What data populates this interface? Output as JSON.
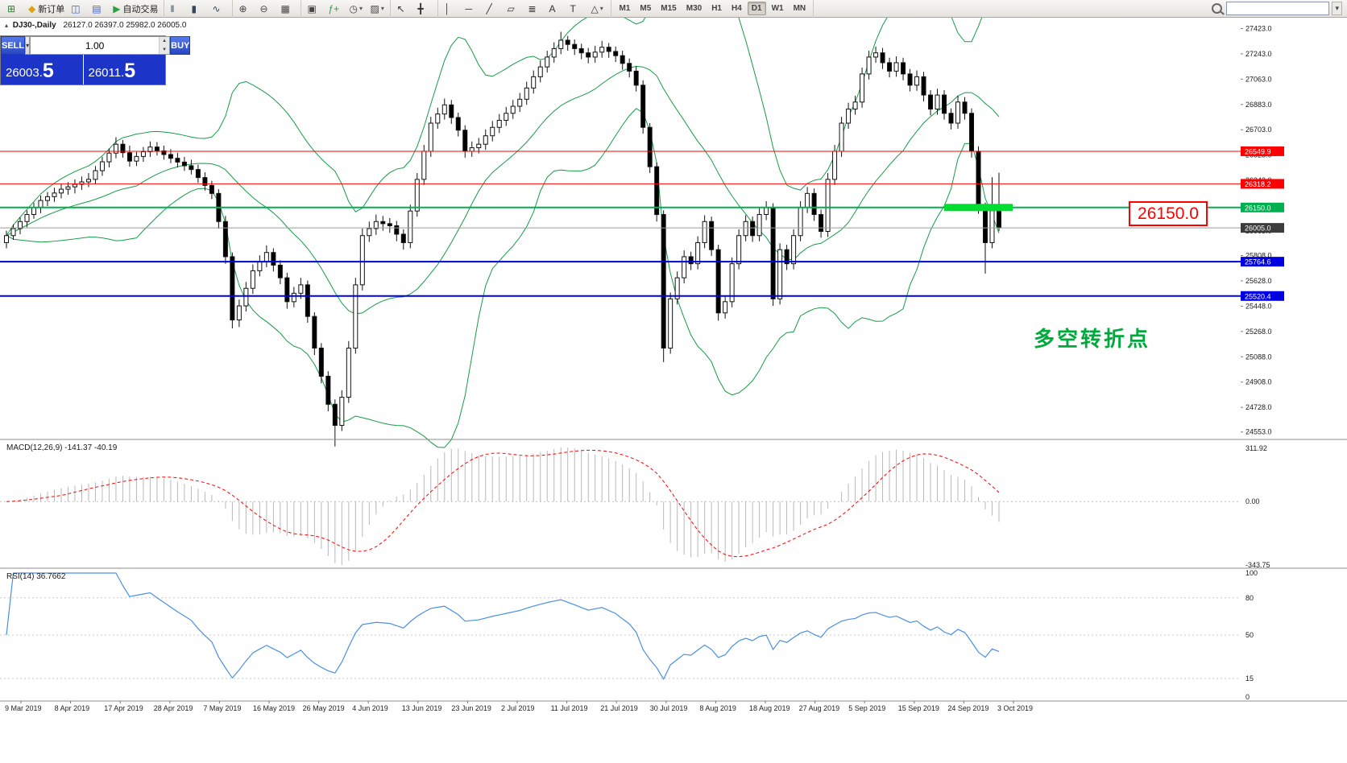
{
  "toolbar": {
    "groups": [
      {
        "name": "standard",
        "items": [
          {
            "name": "new-chart-icon",
            "glyph": "⊞",
            "color": "#2e7d32"
          },
          {
            "name": "new-order-button",
            "glyph": "◆",
            "color": "#d9a418",
            "label": "新订单"
          },
          {
            "name": "profiles-icon",
            "glyph": "◫",
            "color": "#3f62c8"
          },
          {
            "name": "market-watch-icon",
            "glyph": "▤",
            "color": "#3f62c8"
          },
          {
            "name": "autotrading-button",
            "glyph": "▶",
            "color": "#2f9e44",
            "label": "自动交易"
          }
        ]
      },
      {
        "name": "chart-types",
        "items": [
          {
            "name": "bar-chart-icon",
            "glyph": "‖",
            "color": "#33475a"
          },
          {
            "name": "candlestick-chart-icon",
            "glyph": "▮",
            "color": "#33475a"
          },
          {
            "name": "line-chart-icon",
            "glyph": "∿",
            "color": "#33475a"
          }
        ]
      },
      {
        "name": "zoom",
        "items": [
          {
            "name": "zoom-in-icon",
            "glyph": "⊕",
            "color": "#444444"
          },
          {
            "name": "zoom-out-icon",
            "glyph": "⊖",
            "color": "#444444"
          },
          {
            "name": "tile-windows-icon",
            "glyph": "▦",
            "color": "#444444"
          }
        ]
      },
      {
        "name": "indicators",
        "items": [
          {
            "name": "arrange-windows-icon",
            "glyph": "▣",
            "color": "#444444"
          },
          {
            "name": "indicators-icon",
            "glyph": "ƒ+",
            "color": "#2f9e44"
          },
          {
            "name": "periods-icon",
            "glyph": "◷",
            "color": "#444444",
            "dropdown": true
          },
          {
            "name": "templates-icon",
            "glyph": "▨",
            "color": "#444444",
            "dropdown": true
          }
        ]
      },
      {
        "name": "cursor",
        "items": [
          {
            "name": "cursor-icon",
            "glyph": "↖",
            "color": "#333333"
          },
          {
            "name": "crosshair-icon",
            "glyph": "╋",
            "color": "#333333"
          }
        ]
      },
      {
        "name": "objects",
        "items": [
          {
            "name": "vertical-line-icon",
            "glyph": "│",
            "color": "#333333"
          },
          {
            "name": "horizontal-line-icon",
            "glyph": "─",
            "color": "#333333"
          },
          {
            "name": "trendline-icon",
            "glyph": "╱",
            "color": "#333333"
          },
          {
            "name": "equidistant-channel-icon",
            "glyph": "▱",
            "color": "#333333"
          },
          {
            "name": "fibonacci-icon",
            "glyph": "≣",
            "color": "#333333"
          },
          {
            "name": "text-icon",
            "glyph": "A",
            "color": "#333333"
          },
          {
            "name": "label-icon",
            "glyph": "T",
            "color": "#333333"
          },
          {
            "name": "shapes-icon",
            "glyph": "△",
            "color": "#333333",
            "dropdown": true
          }
        ]
      }
    ],
    "timeframes": [
      "M1",
      "M5",
      "M15",
      "M30",
      "H1",
      "H4",
      "D1",
      "W1",
      "MN"
    ],
    "active_timeframe": "D1",
    "search_placeholder": ""
  },
  "trade_panel": {
    "sell_label": "SELL",
    "buy_label": "BUY",
    "volume": "1.00",
    "sell_price_main": "26003.",
    "sell_price_big": "5",
    "buy_price_main": "26011.",
    "buy_price_big": "5"
  },
  "colors": {
    "up_candle": "#ffffff",
    "down_candle": "#000000",
    "candle_border": "#111111",
    "bollinger": "#169c46",
    "macd_hist": "#b8b8b8",
    "macd_signal": "#ff0000",
    "rsi_line": "#4a90e2",
    "grid_sep": "#8c8c8c",
    "current_price_line": "#9a9a9a",
    "highlight_green": "#00dc32",
    "axis_text": "#1a1a1a"
  },
  "chart_data": {
    "type": "candlestick",
    "symbol_period": "DJ30-,Daily",
    "ohlc_text": "26127.0 26397.0 25982.0 26005.0",
    "ylim": [
      24500,
      27500
    ],
    "price_ticks": [
      "27423.0",
      "27243.0",
      "27063.0",
      "26883.0",
      "26703.0",
      "26523.0",
      "26343.0",
      "26163.0",
      "25983.0",
      "25808.0",
      "25628.0",
      "25448.0",
      "25268.0",
      "25088.0",
      "24908.0",
      "24728.0",
      "24553.0"
    ],
    "bollinger": {
      "period": 20,
      "deviation": 2
    },
    "h_lines": [
      {
        "price": 26549.9,
        "label": "26549.9",
        "color": "#ff0000",
        "width": 1
      },
      {
        "price": 26318.2,
        "label": "26318.2",
        "color": "#ff0000",
        "width": 1
      },
      {
        "price": 26150.0,
        "label": "26150.0",
        "color": "#00b050",
        "width": 2
      },
      {
        "price": 26005.0,
        "label": "26005.0",
        "color": "#9a9a9a",
        "width": 1,
        "current": true,
        "tag_bg": "#3c3c3c"
      },
      {
        "price": 25764.6,
        "label": "25764.6",
        "color": "#0000e0",
        "width": 2
      },
      {
        "price": 25520.4,
        "label": "25520.4",
        "color": "#0000e0",
        "width": 2
      }
    ],
    "highlight_segment": {
      "price": 26150.0,
      "from_index": 137,
      "to_index": 147
    },
    "annotations": {
      "price_box": "26150.0",
      "turning_point": "多空转折点"
    },
    "macd": {
      "label": "MACD(12,26,9)",
      "value_text": "-141.37 -40.19",
      "axis_top": "311.92",
      "axis_zero": "0.00",
      "axis_bottom": "-343.75",
      "fast": 12,
      "slow": 26,
      "signal_period": 9
    },
    "rsi": {
      "label": "RSI(14)",
      "value_text": "36.7662",
      "period": 14,
      "levels": [
        "100",
        "80",
        "50",
        "15",
        "0"
      ]
    },
    "dates": [
      "9 Mar 2019",
      "8 Apr 2019",
      "17 Apr 2019",
      "28 Apr 2019",
      "7 May 2019",
      "16 May 2019",
      "26 May 2019",
      "4 Jun 2019",
      "13 Jun 2019",
      "23 Jun 2019",
      "2 Jul 2019",
      "11 Jul 2019",
      "21 Jul 2019",
      "30 Jul 2019",
      "8 Aug 2019",
      "18 Aug 2019",
      "27 Aug 2019",
      "5 Sep 2019",
      "15 Sep 2019",
      "24 Sep 2019",
      "3 Oct 2019"
    ],
    "candles": [
      [
        25900,
        25985,
        25860,
        25950
      ],
      [
        25950,
        26030,
        25920,
        26000
      ],
      [
        26000,
        26080,
        25960,
        26050
      ],
      [
        26050,
        26130,
        26010,
        26100
      ],
      [
        26100,
        26185,
        26070,
        26150
      ],
      [
        26150,
        26235,
        26110,
        26200
      ],
      [
        26200,
        26260,
        26160,
        26227
      ],
      [
        26227,
        26290,
        26190,
        26253
      ],
      [
        26253,
        26320,
        26215,
        26280
      ],
      [
        26280,
        26330,
        26240,
        26297
      ],
      [
        26297,
        26350,
        26250,
        26315
      ],
      [
        26315,
        26370,
        26275,
        26332
      ],
      [
        26332,
        26395,
        26295,
        26350
      ],
      [
        26350,
        26445,
        26315,
        26412
      ],
      [
        26412,
        26510,
        26375,
        26475
      ],
      [
        26475,
        26570,
        26435,
        26537
      ],
      [
        26537,
        26650,
        26500,
        26600
      ],
      [
        26600,
        26630,
        26505,
        26540
      ],
      [
        26540,
        26590,
        26440,
        26480
      ],
      [
        26480,
        26545,
        26445,
        26513
      ],
      [
        26513,
        26580,
        26475,
        26547
      ],
      [
        26547,
        26620,
        26510,
        26580
      ],
      [
        26580,
        26615,
        26520,
        26553
      ],
      [
        26553,
        26590,
        26490,
        26527
      ],
      [
        26527,
        26565,
        26465,
        26500
      ],
      [
        26500,
        26540,
        26435,
        26473
      ],
      [
        26473,
        26510,
        26410,
        26447
      ],
      [
        26447,
        26490,
        26385,
        26420
      ],
      [
        26420,
        26455,
        26325,
        26363
      ],
      [
        26363,
        26400,
        26270,
        26307
      ],
      [
        26307,
        26340,
        26210,
        26250
      ],
      [
        26250,
        26280,
        26000,
        26050
      ],
      [
        26050,
        26090,
        25750,
        25800
      ],
      [
        25800,
        25830,
        25290,
        25350
      ],
      [
        25350,
        25495,
        25300,
        25450
      ],
      [
        25450,
        25620,
        25410,
        25575
      ],
      [
        25575,
        25745,
        25535,
        25700
      ],
      [
        25700,
        25810,
        25660,
        25765
      ],
      [
        25765,
        25880,
        25725,
        25830
      ],
      [
        25830,
        25860,
        25695,
        25740
      ],
      [
        25740,
        25775,
        25605,
        25650
      ],
      [
        25650,
        25685,
        25430,
        25480
      ],
      [
        25480,
        25585,
        25440,
        25540
      ],
      [
        25540,
        25650,
        25500,
        25600
      ],
      [
        25600,
        25630,
        25330,
        25375
      ],
      [
        25375,
        25405,
        25100,
        25150
      ],
      [
        25150,
        25185,
        24900,
        24950
      ],
      [
        24950,
        24985,
        24700,
        24750
      ],
      [
        24750,
        24785,
        24450,
        24600
      ],
      [
        24600,
        24850,
        24560,
        24800
      ],
      [
        24800,
        25200,
        24760,
        25150
      ],
      [
        25150,
        25650,
        25110,
        25600
      ],
      [
        25600,
        26000,
        25560,
        25950
      ],
      [
        25950,
        26050,
        25905,
        26000
      ],
      [
        26000,
        26100,
        25955,
        26050
      ],
      [
        26050,
        26090,
        25985,
        26035
      ],
      [
        26035,
        26075,
        25970,
        26020
      ],
      [
        26020,
        26055,
        25910,
        25960
      ],
      [
        25960,
        25995,
        25850,
        25900
      ],
      [
        25900,
        26170,
        25860,
        26125
      ],
      [
        26125,
        26395,
        26085,
        26350
      ],
      [
        26350,
        26595,
        26310,
        26550
      ],
      [
        26550,
        26795,
        26510,
        26750
      ],
      [
        26750,
        26860,
        26710,
        26815
      ],
      [
        26815,
        26925,
        26775,
        26880
      ],
      [
        26880,
        26915,
        26745,
        26790
      ],
      [
        26790,
        26825,
        26655,
        26700
      ],
      [
        26700,
        26735,
        26505,
        26550
      ],
      [
        26550,
        26620,
        26510,
        26575
      ],
      [
        26575,
        26645,
        26535,
        26600
      ],
      [
        26600,
        26705,
        26560,
        26660
      ],
      [
        26660,
        26765,
        26620,
        26720
      ],
      [
        26720,
        26815,
        26680,
        26770
      ],
      [
        26770,
        26865,
        26730,
        26820
      ],
      [
        26820,
        26915,
        26780,
        26870
      ],
      [
        26870,
        26965,
        26830,
        26920
      ],
      [
        26920,
        27045,
        26880,
        27000
      ],
      [
        27000,
        27125,
        26960,
        27080
      ],
      [
        27080,
        27195,
        27040,
        27150
      ],
      [
        27150,
        27265,
        27110,
        27220
      ],
      [
        27220,
        27325,
        27180,
        27280
      ],
      [
        27280,
        27400,
        27240,
        27340
      ],
      [
        27340,
        27370,
        27265,
        27310
      ],
      [
        27310,
        27345,
        27235,
        27280
      ],
      [
        27280,
        27315,
        27205,
        27250
      ],
      [
        27250,
        27285,
        27175,
        27220
      ],
      [
        27220,
        27300,
        27180,
        27255
      ],
      [
        27255,
        27335,
        27215,
        27290
      ],
      [
        27290,
        27320,
        27215,
        27260
      ],
      [
        27260,
        27295,
        27185,
        27230
      ],
      [
        27230,
        27265,
        27130,
        27175
      ],
      [
        27175,
        27210,
        27075,
        27120
      ],
      [
        27120,
        27155,
        26975,
        27020
      ],
      [
        27020,
        27055,
        26675,
        26720
      ],
      [
        26720,
        26750,
        26395,
        26440
      ],
      [
        26440,
        26470,
        26050,
        26100
      ],
      [
        26100,
        26130,
        25050,
        25150
      ],
      [
        25150,
        25545,
        25110,
        25500
      ],
      [
        25500,
        25695,
        25460,
        25650
      ],
      [
        25650,
        25845,
        25610,
        25800
      ],
      [
        25800,
        25835,
        25705,
        25750
      ],
      [
        25750,
        25945,
        25710,
        25900
      ],
      [
        25900,
        26095,
        25860,
        26050
      ],
      [
        26050,
        26085,
        25805,
        25850
      ],
      [
        25850,
        25885,
        25345,
        25400
      ],
      [
        25400,
        25525,
        25360,
        25480
      ],
      [
        25480,
        25795,
        25440,
        25750
      ],
      [
        25750,
        25995,
        25710,
        25950
      ],
      [
        25950,
        26095,
        25910,
        26050
      ],
      [
        26050,
        26085,
        25905,
        25950
      ],
      [
        25950,
        26145,
        25910,
        26100
      ],
      [
        26100,
        26195,
        26060,
        26150
      ],
      [
        26150,
        26180,
        25450,
        25500
      ],
      [
        25500,
        25895,
        25460,
        25850
      ],
      [
        25850,
        25885,
        25705,
        25750
      ],
      [
        25750,
        25995,
        25710,
        25950
      ],
      [
        25950,
        26195,
        25910,
        26150
      ],
      [
        26150,
        26295,
        26110,
        26250
      ],
      [
        26250,
        26285,
        26055,
        26100
      ],
      [
        26100,
        26135,
        25935,
        25980
      ],
      [
        25980,
        26395,
        25940,
        26350
      ],
      [
        26350,
        26595,
        26310,
        26550
      ],
      [
        26550,
        26795,
        26510,
        26750
      ],
      [
        26750,
        26895,
        26710,
        26850
      ],
      [
        26850,
        26945,
        26810,
        26900
      ],
      [
        26900,
        27145,
        26860,
        27100
      ],
      [
        27100,
        27265,
        27060,
        27220
      ],
      [
        27220,
        27295,
        27180,
        27250
      ],
      [
        27250,
        27285,
        27135,
        27180
      ],
      [
        27180,
        27215,
        27075,
        27120
      ],
      [
        27120,
        27225,
        27080,
        27180
      ],
      [
        27180,
        27215,
        27055,
        27100
      ],
      [
        27100,
        27135,
        26975,
        27020
      ],
      [
        27020,
        27125,
        26980,
        27080
      ],
      [
        27080,
        27115,
        26905,
        26950
      ],
      [
        26950,
        26985,
        26805,
        26850
      ],
      [
        26850,
        26995,
        26810,
        26950
      ],
      [
        26950,
        26985,
        26775,
        26820
      ],
      [
        26820,
        26855,
        26705,
        26750
      ],
      [
        26750,
        26945,
        26710,
        26900
      ],
      [
        26900,
        26935,
        26775,
        26820
      ],
      [
        26820,
        26855,
        26505,
        26550
      ],
      [
        26550,
        26585,
        26105,
        26150
      ],
      [
        26150,
        26185,
        25680,
        25900
      ],
      [
        25900,
        26365,
        25860,
        26127
      ],
      [
        26127,
        26397,
        25982,
        26005
      ]
    ]
  }
}
